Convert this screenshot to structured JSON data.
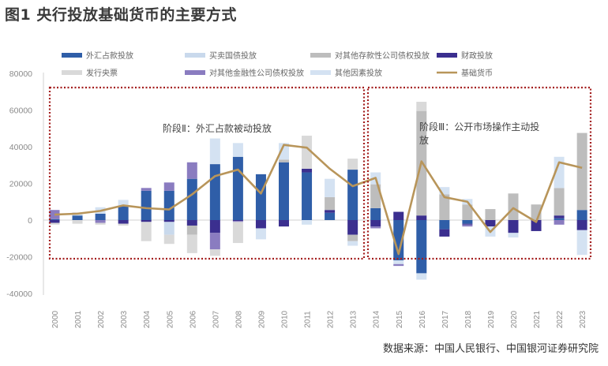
{
  "title": "图1  央行投放基础货币的主要方式",
  "source": "数据来源：中国人民银行、中国银河证券研究院",
  "chart_data": {
    "type": "bar",
    "subtype": "stacked-bar-with-line",
    "title": "图1  央行投放基础货币的主要方式",
    "xlabel": "",
    "ylabel": "",
    "ylim": [
      -40000,
      80000
    ],
    "yticks": [
      80000,
      60000,
      40000,
      20000,
      0,
      -20000,
      -40000
    ],
    "ytick_labels": [
      "80000",
      "60000",
      "40000",
      "20000",
      "0",
      "-20000",
      "-40000"
    ],
    "grid": false,
    "legend_position": "top",
    "categories": [
      "2000",
      "2001",
      "2002",
      "2003",
      "2004",
      "2005",
      "2006",
      "2007",
      "2008",
      "2009",
      "2010",
      "2011",
      "2012",
      "2013",
      "2014",
      "2015",
      "2016",
      "2017",
      "2018",
      "2019",
      "2020",
      "2021",
      "2022",
      "2023"
    ],
    "series": [
      {
        "name": "外汇占款投放",
        "kind": "bar",
        "color": "#2f5ea8",
        "values": [
          500,
          2500,
          3500,
          7500,
          16000,
          16000,
          22500,
          30500,
          34500,
          25000,
          31500,
          26000,
          4000,
          27500,
          6500,
          -22000,
          -29000,
          -5000,
          -2000,
          0,
          0,
          0,
          1000,
          5500
        ]
      },
      {
        "name": "买卖国债投放",
        "kind": "bar",
        "color": "#c9d9ec",
        "values": [
          0,
          0,
          0,
          0,
          0,
          -7000,
          0,
          0,
          0,
          0,
          0,
          0,
          0,
          0,
          0,
          0,
          0,
          0,
          0,
          0,
          0,
          0,
          0,
          0
        ]
      },
      {
        "name": "对其他存款性公司债权投放",
        "kind": "bar",
        "color": "#bdbdbd",
        "values": [
          0,
          0,
          0,
          0,
          0,
          0,
          -5000,
          0,
          0,
          0,
          1500,
          0,
          7000,
          -3500,
          13000,
          0,
          57000,
          14000,
          8500,
          6000,
          14500,
          8500,
          15000,
          42000
        ]
      },
      {
        "name": "财政投放",
        "kind": "bar",
        "color": "#3b2f8f",
        "values": [
          -1500,
          0,
          0,
          -2000,
          -1000,
          -1000,
          -3000,
          -7000,
          -500,
          -4500,
          -3500,
          2000,
          1500,
          -8000,
          -3500,
          4500,
          2500,
          -4000,
          -500,
          -3500,
          -7000,
          -6000,
          1500,
          -5500
        ]
      },
      {
        "name": "发行央票",
        "kind": "bar",
        "color": "#d9d9d9",
        "values": [
          -1000,
          -2000,
          -1000,
          -1000,
          -10500,
          -5000,
          -10000,
          -3500,
          -11500,
          0,
          0,
          18000,
          0,
          6000,
          0,
          0,
          5000,
          0,
          0,
          0,
          0,
          0,
          0,
          0
        ]
      },
      {
        "name": "对其他金融性公司债权投放",
        "kind": "bar",
        "color": "#8a7cc0",
        "values": [
          5000,
          500,
          -1500,
          0,
          1500,
          4500,
          9000,
          -9000,
          -500,
          0,
          0,
          0,
          0,
          0,
          -1000,
          -1000,
          0,
          0,
          -1000,
          0,
          0,
          0,
          -2500,
          0
        ]
      },
      {
        "name": "其他因素投放",
        "kind": "bar",
        "color": "#d4e2f2",
        "values": [
          0,
          1000,
          3500,
          3500,
          0,
          0,
          0,
          14000,
          7500,
          -6000,
          9000,
          -2500,
          10000,
          -2500,
          6500,
          -2000,
          -3500,
          4000,
          3000,
          -5500,
          -2500,
          0,
          17000,
          -13500
        ]
      },
      {
        "name": "基础货币",
        "kind": "line",
        "color": "#b8955a",
        "values": [
          3000,
          3500,
          5000,
          8000,
          6500,
          5800,
          14000,
          24000,
          27500,
          14500,
          41000,
          39500,
          28000,
          18500,
          23000,
          -18500,
          32000,
          12500,
          10000,
          -6500,
          6500,
          -1000,
          31500,
          28500
        ]
      }
    ],
    "annotations": [
      {
        "text": "阶段Ⅱ：外汇占款被动投放",
        "range": [
          "2000",
          "2013"
        ],
        "box": "dotted"
      },
      {
        "text": "阶段Ⅲ：公开市场操作主动投放",
        "range": [
          "2014",
          "2023"
        ],
        "box": "dotted"
      }
    ]
  },
  "legend": [
    {
      "label": "外汇占款投放",
      "color": "#2f5ea8",
      "kind": "bar"
    },
    {
      "label": "买卖国债投放",
      "color": "#c9d9ec",
      "kind": "bar"
    },
    {
      "label": "对其他存款性公司债权投放",
      "color": "#bdbdbd",
      "kind": "bar"
    },
    {
      "label": "财政投放",
      "color": "#3b2f8f",
      "kind": "bar"
    },
    {
      "label": "发行央票",
      "color": "#d9d9d9",
      "kind": "bar"
    },
    {
      "label": "对其他金融性公司债权投放",
      "color": "#8a7cc0",
      "kind": "bar"
    },
    {
      "label": "其他因素投放",
      "color": "#d4e2f2",
      "kind": "bar"
    },
    {
      "label": "基础货币",
      "color": "#b8955a",
      "kind": "line"
    }
  ],
  "phases": [
    {
      "label": "阶段Ⅱ：外汇占款被动投放"
    },
    {
      "label_line1": "阶段Ⅲ：公开市场操作主动投",
      "label_line2": "放"
    }
  ],
  "colors": {
    "phase_box": "#a31c1c",
    "axis": "#d0d0d0"
  }
}
